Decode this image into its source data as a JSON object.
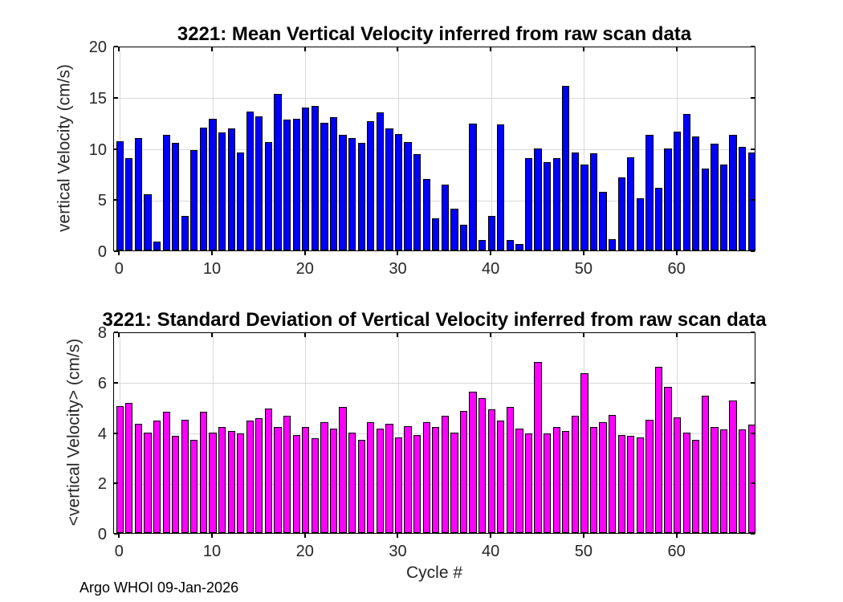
{
  "figure": {
    "xlabel": "Cycle #",
    "footer": "Argo WHOI 09-Jan-2026",
    "background": "#ffffff"
  },
  "chart_data": [
    {
      "type": "bar",
      "title": "3221: Mean Vertical Velocity inferred from raw scan data",
      "ylabel": "vertical Velocity (cm/s)",
      "xlabel": "Cycle #",
      "bar_color": "#0000ff",
      "bar_edge_color": "#000000",
      "grid": true,
      "legend": "none",
      "ylim": [
        0,
        20
      ],
      "yticks": [
        0,
        5,
        10,
        15,
        20
      ],
      "xticks": [
        0,
        10,
        20,
        30,
        40,
        50,
        60
      ],
      "xlim": [
        -0.63,
        68.5
      ],
      "x": [
        0,
        1,
        2,
        3,
        4,
        5,
        6,
        7,
        8,
        9,
        10,
        11,
        12,
        13,
        14,
        15,
        16,
        17,
        18,
        19,
        20,
        21,
        22,
        23,
        24,
        25,
        26,
        27,
        28,
        29,
        30,
        31,
        32,
        33,
        34,
        35,
        36,
        37,
        38,
        39,
        40,
        41,
        42,
        43,
        44,
        45,
        46,
        47,
        48,
        49,
        50,
        51,
        52,
        53,
        54,
        55,
        56,
        57,
        58,
        59,
        60,
        61,
        62,
        63,
        64,
        65,
        66,
        67,
        68
      ],
      "values": [
        10.7,
        9.0,
        11.0,
        5.5,
        0.9,
        11.3,
        10.5,
        3.4,
        9.8,
        12.0,
        12.9,
        11.5,
        11.9,
        9.6,
        13.6,
        13.1,
        10.6,
        15.3,
        12.8,
        12.9,
        14.0,
        14.1,
        12.5,
        13.0,
        11.3,
        11.0,
        10.5,
        12.6,
        13.5,
        11.9,
        11.4,
        10.6,
        9.4,
        7.0,
        3.1,
        6.4,
        4.1,
        2.5,
        12.4,
        1.0,
        3.4,
        12.3,
        1.0,
        0.6,
        9.0,
        10.0,
        8.6,
        9.0,
        16.1,
        9.6,
        8.4,
        9.5,
        5.7,
        1.1,
        7.1,
        9.1,
        5.1,
        11.3,
        6.1,
        10.0,
        11.6,
        13.3,
        11.1,
        8.0,
        10.4,
        8.4,
        11.3,
        10.1,
        9.6
      ]
    },
    {
      "type": "bar",
      "title": "3221: Standard Deviation of Vertical Velocity inferred from raw scan data",
      "ylabel": "<vertical Velocity> (cm/s)",
      "xlabel": "Cycle #",
      "bar_color": "#ff00ff",
      "bar_edge_color": "#000000",
      "grid": true,
      "legend": "none",
      "ylim": [
        0,
        8
      ],
      "yticks": [
        0,
        2,
        4,
        6,
        8
      ],
      "xticks": [
        0,
        10,
        20,
        30,
        40,
        50,
        60
      ],
      "xlim": [
        -0.63,
        68.5
      ],
      "x": [
        0,
        1,
        2,
        3,
        4,
        5,
        6,
        7,
        8,
        9,
        10,
        11,
        12,
        13,
        14,
        15,
        16,
        17,
        18,
        19,
        20,
        21,
        22,
        23,
        24,
        25,
        26,
        27,
        28,
        29,
        30,
        31,
        32,
        33,
        34,
        35,
        36,
        37,
        38,
        39,
        40,
        41,
        42,
        43,
        44,
        45,
        46,
        47,
        48,
        49,
        50,
        51,
        52,
        53,
        54,
        55,
        56,
        57,
        58,
        59,
        60,
        61,
        62,
        63,
        64,
        65,
        66,
        67,
        68
      ],
      "values": [
        5.05,
        5.15,
        4.35,
        4.0,
        4.45,
        4.8,
        3.85,
        4.5,
        3.7,
        4.8,
        4.0,
        4.2,
        4.05,
        3.95,
        4.45,
        4.55,
        4.95,
        4.2,
        4.65,
        3.9,
        4.2,
        3.75,
        4.4,
        4.15,
        5.0,
        4.0,
        3.7,
        4.4,
        4.15,
        4.35,
        3.8,
        4.25,
        3.9,
        4.4,
        4.2,
        4.65,
        4.0,
        4.85,
        5.6,
        5.35,
        4.9,
        4.45,
        5.0,
        4.15,
        3.95,
        6.8,
        3.95,
        4.2,
        4.05,
        4.65,
        6.35,
        4.2,
        4.4,
        4.7,
        3.9,
        3.85,
        3.8,
        4.5,
        6.6,
        5.8,
        4.6,
        4.0,
        3.7,
        5.45,
        4.2,
        4.1,
        5.25,
        4.1,
        4.3
      ]
    }
  ]
}
